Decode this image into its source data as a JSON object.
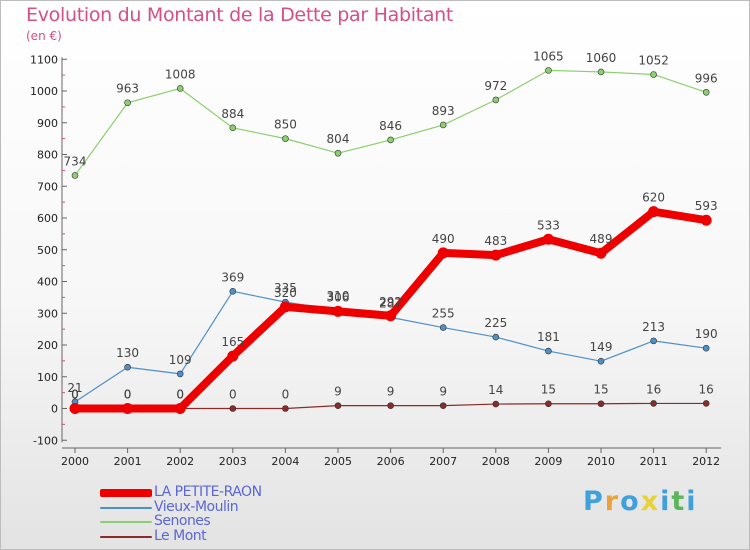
{
  "title": "Evolution du Montant de la Dette par Habitant",
  "subtitle": "(en €)",
  "logo": {
    "letters": [
      "P",
      "r",
      "o",
      "x",
      "i",
      "t",
      "i"
    ],
    "colors": [
      "#3fa0dc",
      "#e8a33a",
      "#3fa0dc",
      "#e8d23a",
      "#3fa0dc",
      "#5bb55b",
      "#3fa0dc"
    ]
  },
  "chart_data": {
    "type": "line",
    "title": "Evolution du Montant de la Dette par Habitant",
    "subtitle": "(en €)",
    "x": [
      "2000",
      "2001",
      "2002",
      "2003",
      "2004",
      "2005",
      "2006",
      "2007",
      "2008",
      "2009",
      "2010",
      "2011",
      "2012"
    ],
    "ylim": [
      -100,
      1100
    ],
    "yticks": [
      -100,
      0,
      100,
      200,
      300,
      400,
      500,
      600,
      700,
      800,
      900,
      1000,
      1100
    ],
    "grid": false,
    "legend_position": "bottom-left",
    "series": [
      {
        "name": "LA PETITE-RAON",
        "color": "#ee0000",
        "values": [
          0,
          0,
          0,
          165,
          320,
          306,
          292,
          490,
          483,
          533,
          489,
          620,
          593
        ]
      },
      {
        "name": "Vieux-Moulin",
        "color": "#4f8fc8",
        "values": [
          21,
          130,
          109,
          369,
          335,
          310,
          287,
          255,
          225,
          181,
          149,
          213,
          190
        ]
      },
      {
        "name": "Senones",
        "color": "#8ccf6f",
        "values": [
          734,
          963,
          1008,
          884,
          850,
          804,
          846,
          893,
          972,
          1065,
          1060,
          1052,
          996
        ]
      },
      {
        "name": "Le Mont",
        "color": "#8b2a2a",
        "values": [
          0,
          0,
          0,
          0,
          0,
          9,
          9,
          9,
          14,
          15,
          15,
          16,
          16
        ]
      }
    ]
  }
}
